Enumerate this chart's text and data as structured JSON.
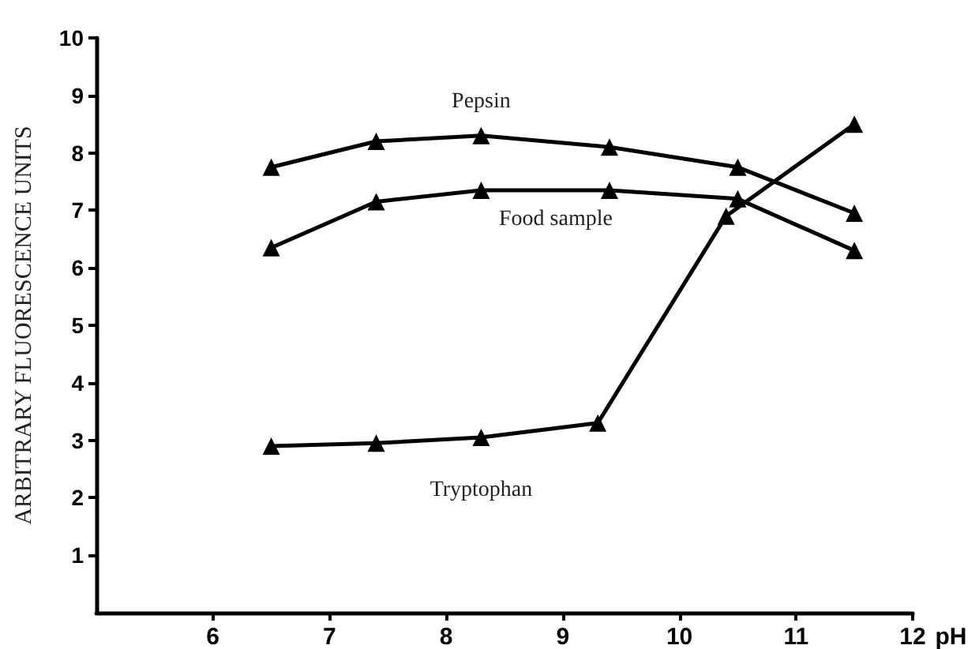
{
  "chart_data": {
    "type": "line",
    "xlabel": "pH",
    "ylabel": "ARBITRARY FLUORESCENCE UNITS",
    "xlim": [
      5,
      12
    ],
    "xticks": [
      6,
      7,
      8,
      9,
      10,
      11,
      12
    ],
    "ylim": [
      0,
      10
    ],
    "yticks": [
      1,
      2,
      3,
      4,
      5,
      6,
      7,
      8,
      9,
      10
    ],
    "grid": false,
    "legend": false,
    "marker": "triangle",
    "line_style": "solid",
    "series": [
      {
        "name": "Pepsin",
        "color": "#000000",
        "x": [
          6.5,
          7.4,
          8.3,
          9.4,
          10.5,
          11.5
        ],
        "values": [
          7.75,
          8.2,
          8.3,
          8.1,
          7.75,
          6.95
        ]
      },
      {
        "name": "Food sample",
        "color": "#000000",
        "x": [
          6.5,
          7.4,
          8.3,
          9.4,
          10.5,
          11.5
        ],
        "values": [
          6.35,
          7.15,
          7.35,
          7.35,
          7.2,
          6.3
        ]
      },
      {
        "name": "Tryptophan",
        "color": "#000000",
        "x": [
          6.5,
          7.4,
          8.3,
          9.3,
          10.4,
          11.5
        ],
        "values": [
          2.9,
          2.95,
          3.05,
          3.3,
          6.9,
          8.5
        ]
      }
    ]
  }
}
